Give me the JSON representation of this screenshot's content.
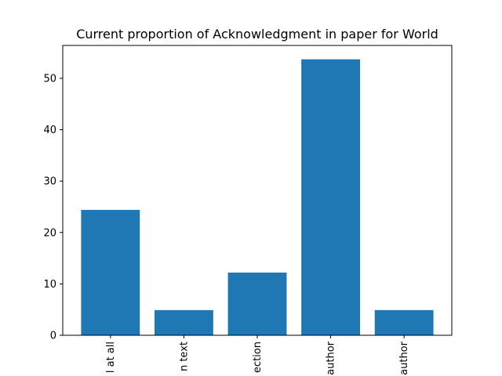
{
  "chart_data": {
    "type": "bar",
    "title": "Current proportion of Acknowledgment in paper for World",
    "xlabel": "",
    "ylabel": "",
    "categories": [
      "l at all",
      "n text",
      "ection",
      "author",
      "author"
    ],
    "values": [
      24.4,
      4.9,
      12.2,
      53.7,
      4.9
    ],
    "ylim": [
      0,
      56.4
    ],
    "yticks": [
      0,
      10,
      20,
      30,
      40,
      50
    ],
    "bar_color": "#1f77b4",
    "grid": false,
    "legend": "none"
  }
}
